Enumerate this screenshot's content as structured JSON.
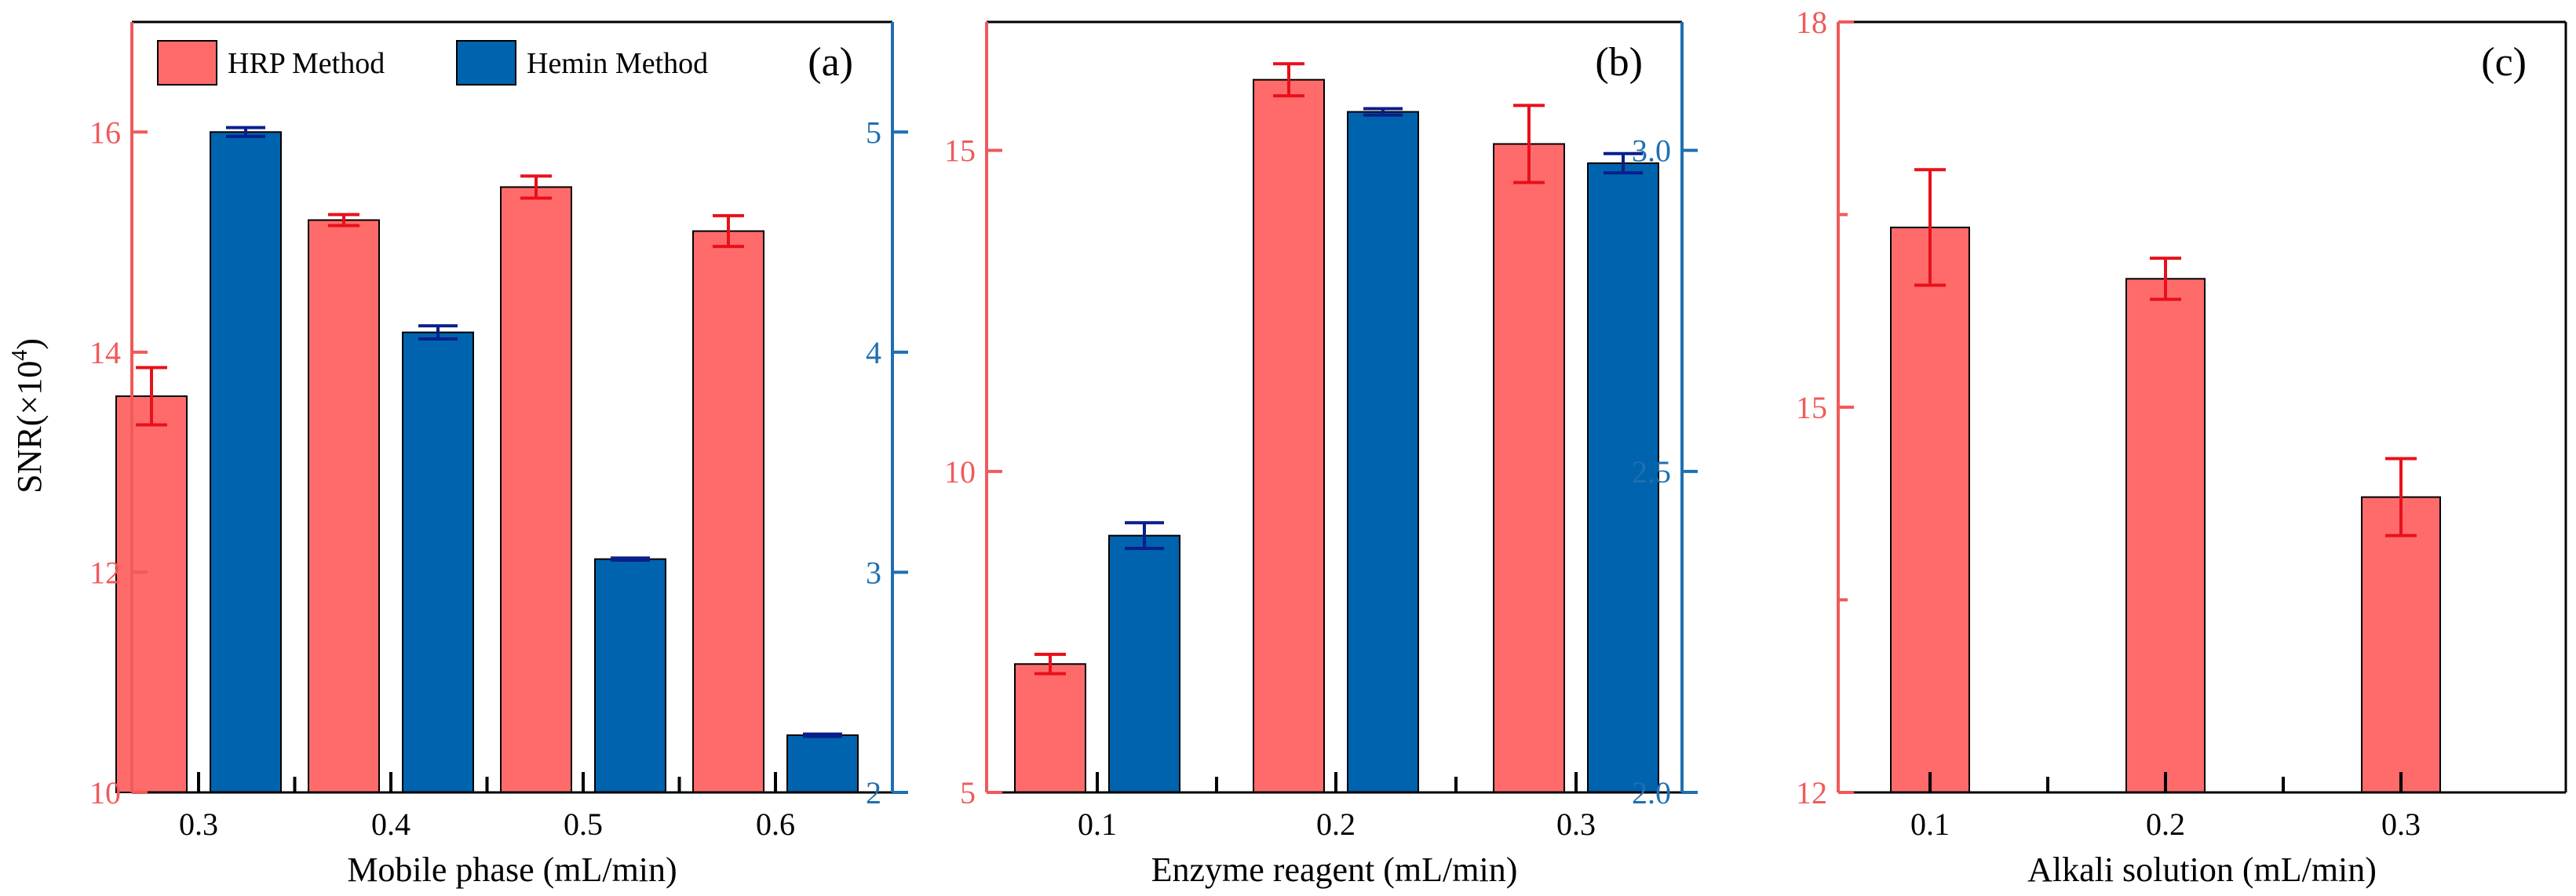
{
  "colors": {
    "hrp": "#FF6B6B",
    "hemin": "#0063AD",
    "hrp_axis": "#F05A5A",
    "hemin_axis": "#1F6FB2",
    "hrp_err": "#E8101A",
    "hemin_err": "#0A1E8C",
    "frame": "#000000"
  },
  "legend": {
    "hrp_label": "HRP Method",
    "hemin_label": "Hemin Method"
  },
  "ylabel_text": "SNR(×10",
  "ylabel_exp": "4",
  "ylabel_close": ")",
  "chart_data": [
    {
      "panel_label": "(a)",
      "type": "bar",
      "xlabel": "Mobile phase (mL/min)",
      "categories": [
        "0.3",
        "0.4",
        "0.5",
        "0.6"
      ],
      "y_left": {
        "label": "SNR(×10^4)",
        "lim": [
          10,
          17
        ],
        "ticks": [
          10,
          12,
          14,
          16
        ],
        "tick_labels": [
          "10",
          "12",
          "14",
          "16"
        ]
      },
      "y_right": {
        "lim": [
          2,
          5.5
        ],
        "ticks": [
          2,
          3,
          4,
          5
        ],
        "tick_labels": [
          "2",
          "3",
          "4",
          "5"
        ]
      },
      "series": [
        {
          "name": "HRP Method",
          "axis": "left",
          "values": [
            13.6,
            15.2,
            15.5,
            15.1
          ],
          "errors": [
            0.26,
            0.05,
            0.1,
            0.14
          ]
        },
        {
          "name": "Hemin Method",
          "axis": "right",
          "values": [
            5.0,
            4.09,
            3.06,
            2.26
          ],
          "errors": [
            0.02,
            0.03,
            0.005,
            0.005
          ]
        }
      ]
    },
    {
      "panel_label": "(b)",
      "type": "bar",
      "xlabel": "Enzyme reagent (mL/min)",
      "categories": [
        "0.1",
        "0.2",
        "0.3"
      ],
      "y_left": {
        "lim": [
          5,
          17
        ],
        "ticks": [
          5,
          10,
          15
        ],
        "tick_labels": [
          "5",
          "10",
          "15"
        ]
      },
      "y_right": {
        "lim": [
          2.0,
          3.2
        ],
        "ticks": [
          2.0,
          2.5,
          3.0
        ],
        "tick_labels": [
          "2.0",
          "2.5",
          "3.0"
        ]
      },
      "series": [
        {
          "name": "HRP Method",
          "axis": "left",
          "values": [
            7.0,
            16.1,
            15.1
          ],
          "errors": [
            0.15,
            0.25,
            0.6
          ]
        },
        {
          "name": "Hemin Method",
          "axis": "right",
          "values": [
            2.4,
            3.06,
            2.98
          ],
          "errors": [
            0.02,
            0.005,
            0.015
          ]
        }
      ]
    },
    {
      "panel_label": "(c)",
      "type": "bar",
      "xlabel": "Alkali solution (mL/min)",
      "categories": [
        "0.1",
        "0.2",
        "0.3"
      ],
      "y_left": {
        "lim": [
          12,
          18
        ],
        "ticks": [
          12,
          15,
          18
        ],
        "tick_labels": [
          "12",
          "15",
          "18"
        ],
        "minor_ticks": [
          13.5,
          16.5
        ]
      },
      "series": [
        {
          "name": "HRP Method",
          "axis": "left",
          "values": [
            16.4,
            16.0,
            14.3
          ],
          "errors": [
            0.45,
            0.16,
            0.3
          ]
        }
      ]
    }
  ]
}
